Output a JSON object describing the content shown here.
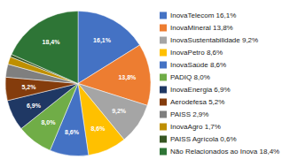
{
  "chart_data": {
    "type": "pie",
    "categories": [
      "InovaTelecom 16,1%",
      "InovaMineral 13,8%",
      "InovaSustentabilidade 9,2%",
      "InovaPetro 8,6%",
      "InovaSaúde 8,6%",
      "PADIQ 8,0%",
      "InovaEnergia 6,9%",
      "Aerodefesa 5,2%",
      "PAISS 2,9%",
      "InovaAgro 1,7%",
      "PAISS Agrícola 0,6%",
      "Não Relacionados ao Inova 18,4%"
    ],
    "values": [
      16.1,
      13.8,
      9.2,
      8.6,
      8.6,
      8.0,
      6.9,
      5.2,
      2.9,
      1.7,
      0.6,
      18.4
    ],
    "value_labels": [
      "16,1%",
      "13,8%",
      "9,2%",
      "8,6%",
      "8,6%",
      "8,0%",
      "6,9%",
      "5,2%",
      null,
      null,
      null,
      "18,4%"
    ],
    "colors": [
      "#4472C4",
      "#ED7D31",
      "#A5A5A5",
      "#FFC000",
      "#4472C4",
      "#70AD47",
      "#1F3864",
      "#843C0C",
      "#7F7F7F",
      "#BF8F00",
      "#375623",
      "#2E7536"
    ],
    "data_labels": true,
    "legend": "right"
  }
}
